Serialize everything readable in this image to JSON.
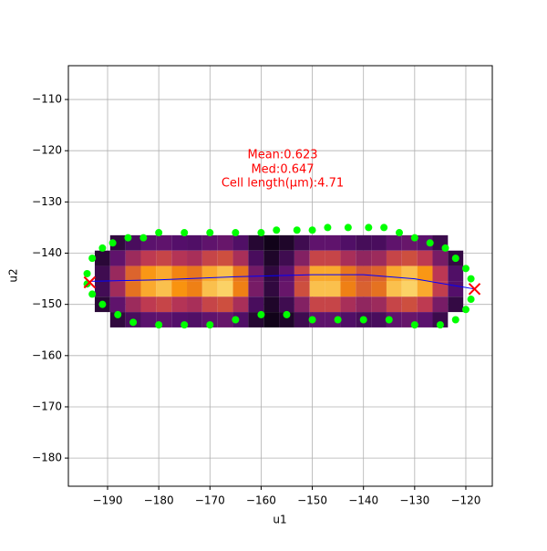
{
  "chart_data": {
    "type": "scatter",
    "xlabel": "u1",
    "ylabel": "u2",
    "annotations": [
      "Mean:0.623",
      "Med:0.647",
      "Cell length(μm):4.71"
    ],
    "annotation_color": "red",
    "xlim": [
      -197.66,
      -114.83
    ],
    "ylim": [
      -185.5,
      -103.4
    ],
    "xticks": [
      {
        "value": -190,
        "label": "−190"
      },
      {
        "value": -180,
        "label": "−180"
      },
      {
        "value": -170,
        "label": "−170"
      },
      {
        "value": -160,
        "label": "−160"
      },
      {
        "value": -150,
        "label": "−150"
      },
      {
        "value": -140,
        "label": "−140"
      },
      {
        "value": -130,
        "label": "−130"
      },
      {
        "value": -120,
        "label": "−120"
      }
    ],
    "yticks": [
      {
        "value": -110,
        "label": "−110"
      },
      {
        "value": -120,
        "label": "−120"
      },
      {
        "value": -130,
        "label": "−130"
      },
      {
        "value": -140,
        "label": "−140"
      },
      {
        "value": -150,
        "label": "−150"
      },
      {
        "value": -160,
        "label": "−160"
      },
      {
        "value": -170,
        "label": "−170"
      },
      {
        "value": -180,
        "label": "−180"
      }
    ],
    "grid": true,
    "heat": {
      "colormap": "inferno",
      "cell": 3,
      "x": [
        -191,
        -188,
        -185,
        -182,
        -179,
        -176,
        -173,
        -170,
        -167,
        -164,
        -161,
        -158,
        -155,
        -152,
        -149,
        -146,
        -143,
        -140,
        -137,
        -134,
        -131,
        -128,
        -125,
        -122
      ],
      "y": [
        -138,
        -141,
        -144,
        -147,
        -150,
        -153
      ],
      "values": [
        [
          null,
          0.14,
          0.21,
          0.26,
          0.27,
          0.24,
          0.23,
          0.27,
          0.29,
          0.23,
          0.11,
          0.05,
          0.09,
          0.18,
          0.27,
          0.27,
          0.23,
          0.2,
          0.21,
          0.27,
          0.29,
          0.26,
          0.17,
          null
        ],
        [
          0.12,
          0.27,
          0.42,
          0.51,
          0.54,
          0.48,
          0.45,
          0.54,
          0.57,
          0.45,
          0.21,
          0.09,
          0.18,
          0.36,
          0.54,
          0.54,
          0.45,
          0.39,
          0.42,
          0.54,
          0.57,
          0.51,
          0.33,
          0.15
        ],
        [
          0.18,
          0.41,
          0.63,
          0.77,
          0.81,
          0.72,
          0.68,
          0.81,
          0.86,
          0.68,
          0.32,
          0.14,
          0.27,
          0.54,
          0.81,
          0.81,
          0.68,
          0.59,
          0.63,
          0.81,
          0.86,
          0.77,
          0.5,
          0.23
        ],
        [
          0.19,
          0.43,
          0.67,
          0.81,
          0.86,
          0.76,
          0.71,
          0.86,
          0.9,
          0.71,
          0.33,
          0.14,
          0.29,
          0.57,
          0.86,
          0.86,
          0.71,
          0.62,
          0.67,
          0.86,
          0.9,
          0.81,
          0.52,
          0.24
        ],
        [
          0.12,
          0.27,
          0.42,
          0.51,
          0.54,
          0.48,
          0.45,
          0.54,
          0.57,
          0.45,
          0.21,
          0.09,
          0.18,
          0.36,
          0.54,
          0.54,
          0.45,
          0.39,
          0.42,
          0.54,
          0.57,
          0.51,
          0.33,
          0.15
        ],
        [
          null,
          0.14,
          0.21,
          0.26,
          0.27,
          0.24,
          0.23,
          0.27,
          0.29,
          0.23,
          0.11,
          0.05,
          0.09,
          0.18,
          0.27,
          0.27,
          0.23,
          0.2,
          0.21,
          0.27,
          0.29,
          0.26,
          0.17,
          null
        ]
      ]
    },
    "outline": {
      "color": "#00ff00",
      "x": [
        -194,
        -193,
        -191,
        -189,
        -186,
        -183,
        -180,
        -175,
        -170,
        -165,
        -160,
        -157,
        -153,
        -150,
        -147,
        -143,
        -139,
        -136,
        -133,
        -130,
        -127,
        -124,
        -122,
        -120,
        -119,
        -119,
        -120,
        -122,
        -125,
        -130,
        -135,
        -140,
        -145,
        -150,
        -155,
        -160,
        -165,
        -170,
        -175,
        -180,
        -185,
        -188,
        -191,
        -193,
        -194
      ],
      "y": [
        -144,
        -141,
        -139,
        -138,
        -137,
        -137,
        -136,
        -136,
        -136,
        -136,
        -136,
        -135.5,
        -135.5,
        -135.5,
        -135,
        -135,
        -135,
        -135,
        -136,
        -137,
        -138,
        -139,
        -141,
        -143,
        -145,
        -149,
        -151,
        -153,
        -154,
        -154,
        -153,
        -153,
        -153,
        -153,
        -152,
        -152,
        -153,
        -154,
        -154,
        -154,
        -153.5,
        -152,
        -150,
        -148,
        -146
      ]
    },
    "centerline": {
      "color": "blue",
      "x": [
        -193.5,
        -180,
        -165,
        -150,
        -140,
        -130,
        -118.3
      ],
      "y": [
        -145.5,
        -145.2,
        -144.6,
        -144.2,
        -144.2,
        -145,
        -147
      ]
    },
    "endpoints": {
      "color": "red",
      "x": [
        -193.5,
        -118.3
      ],
      "y": [
        -145.7,
        -147
      ]
    }
  }
}
